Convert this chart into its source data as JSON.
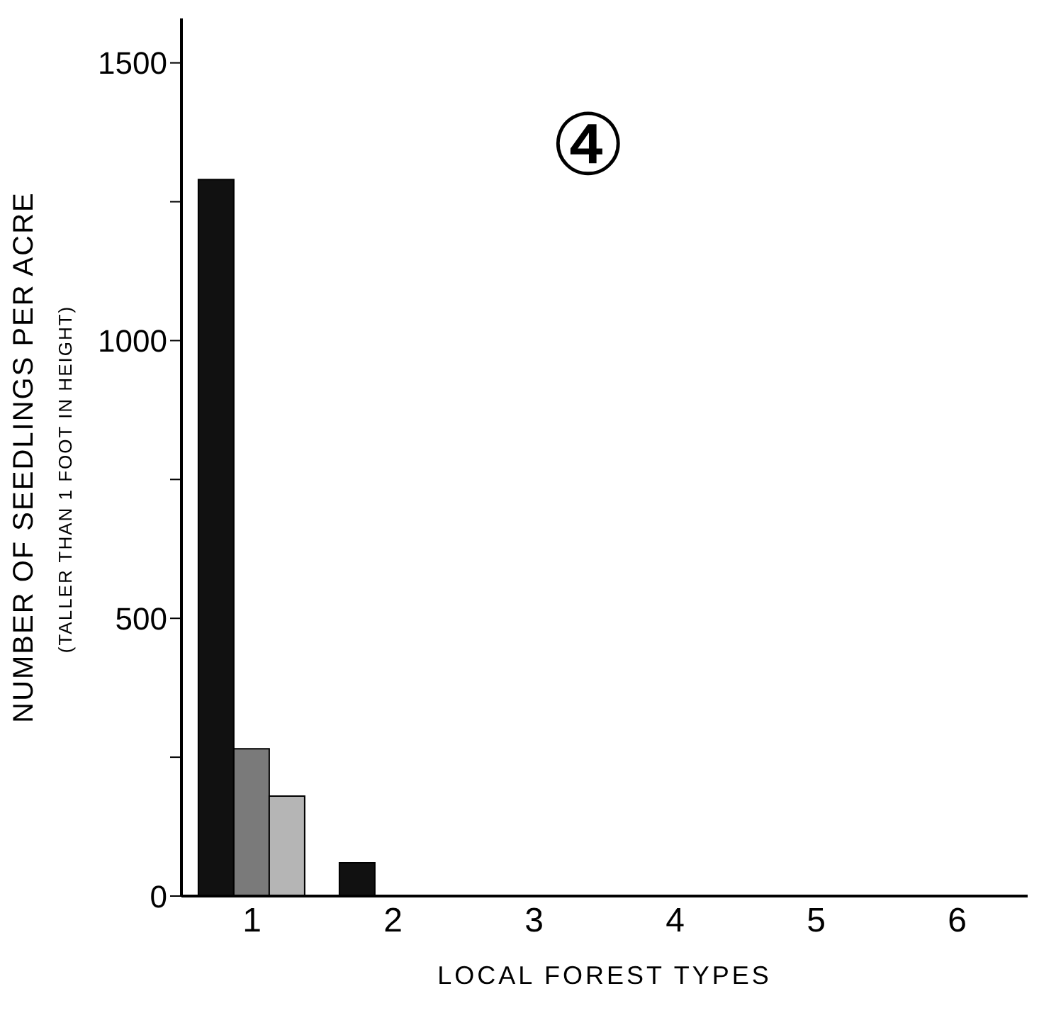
{
  "chart_data": {
    "type": "bar",
    "title": "④",
    "xlabel": "LOCAL FOREST TYPES",
    "ylabel": "NUMBER OF SEEDLINGS PER ACRE",
    "annotations": [
      "(TALLER THAN 1 FOOT IN HEIGHT)"
    ],
    "categories": [
      "1",
      "2",
      "3",
      "4",
      "5",
      "6"
    ],
    "series": [
      {
        "color": "#111111",
        "values": [
          1290,
          60,
          0,
          0,
          0,
          0
        ]
      },
      {
        "color": "#7a7a7a",
        "values": [
          265,
          0,
          0,
          0,
          0,
          0
        ]
      },
      {
        "color": "#b5b5b5",
        "values": [
          180,
          0,
          0,
          0,
          0,
          0
        ]
      }
    ],
    "ylim": [
      0,
      1580
    ],
    "yticks": [
      0,
      {
        "value": 250,
        "label": null
      },
      500,
      {
        "value": 750,
        "label": null
      },
      1000,
      {
        "value": 1250,
        "label": null
      },
      1500
    ],
    "grid": false,
    "legend": false
  }
}
